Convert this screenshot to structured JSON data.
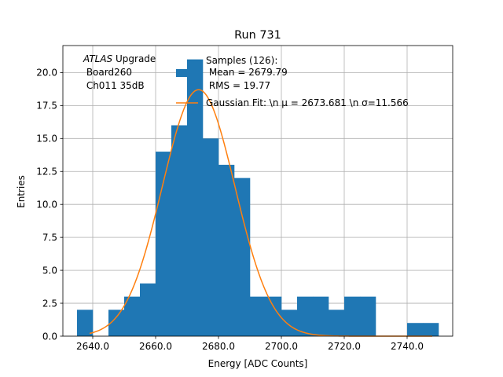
{
  "chart_data": {
    "type": "bar",
    "title": "Run 731",
    "xlabel": "Energy [ADC Counts]",
    "ylabel": "Entries",
    "xlim": [
      2630.5,
      2754.5
    ],
    "ylim": [
      0,
      22.05
    ],
    "xticks": [
      2640,
      2660,
      2680,
      2700,
      2720,
      2740
    ],
    "xtick_labels": [
      "2640.0",
      "2660.0",
      "2680.0",
      "2700.0",
      "2720.0",
      "2740.0"
    ],
    "yticks": [
      0,
      2.5,
      5,
      7.5,
      10,
      12.5,
      15,
      17.5,
      20
    ],
    "ytick_labels": [
      "0.0",
      "2.5",
      "5.0",
      "7.5",
      "10.0",
      "12.5",
      "15.0",
      "17.5",
      "20.0"
    ],
    "grid": true,
    "legend_placement": "top-right",
    "annotation": {
      "line1_italic": "ATLAS",
      "line1_rest": " Upgrade",
      "line2": " Board260",
      "line3": " Ch011 35dB"
    },
    "series": [
      {
        "name": "Samples (126):",
        "name_line2": " Mean = 2679.79",
        "name_line3": " RMS = 19.77",
        "kind": "histogram",
        "color": "#1f77b4",
        "bins": [
          {
            "x0": 2635,
            "x1": 2640,
            "count": 2
          },
          {
            "x0": 2640,
            "x1": 2645,
            "count": 0
          },
          {
            "x0": 2645,
            "x1": 2650,
            "count": 2
          },
          {
            "x0": 2650,
            "x1": 2655,
            "count": 3
          },
          {
            "x0": 2655,
            "x1": 2660,
            "count": 4
          },
          {
            "x0": 2660,
            "x1": 2665,
            "count": 14
          },
          {
            "x0": 2665,
            "x1": 2670,
            "count": 16
          },
          {
            "x0": 2670,
            "x1": 2675,
            "count": 21
          },
          {
            "x0": 2675,
            "x1": 2680,
            "count": 15
          },
          {
            "x0": 2680,
            "x1": 2685,
            "count": 13
          },
          {
            "x0": 2685,
            "x1": 2690,
            "count": 12
          },
          {
            "x0": 2690,
            "x1": 2695,
            "count": 3
          },
          {
            "x0": 2695,
            "x1": 2700,
            "count": 3
          },
          {
            "x0": 2700,
            "x1": 2705,
            "count": 2
          },
          {
            "x0": 2705,
            "x1": 2710,
            "count": 3
          },
          {
            "x0": 2710,
            "x1": 2715,
            "count": 3
          },
          {
            "x0": 2715,
            "x1": 2720,
            "count": 2
          },
          {
            "x0": 2720,
            "x1": 2725,
            "count": 3
          },
          {
            "x0": 2725,
            "x1": 2730,
            "count": 3
          },
          {
            "x0": 2730,
            "x1": 2735,
            "count": 0
          },
          {
            "x0": 2735,
            "x1": 2740,
            "count": 0
          },
          {
            "x0": 2740,
            "x1": 2745,
            "count": 1
          },
          {
            "x0": 2745,
            "x1": 2750,
            "count": 1
          }
        ]
      },
      {
        "name": "Gaussian Fit: \\n μ = 2673.681 \\n σ=11.566",
        "kind": "gaussian",
        "color": "#ff7f0e",
        "mu": 2673.681,
        "sigma": 11.566,
        "amplitude": 18.7,
        "x_range": [
          2639,
          2748
        ]
      }
    ]
  }
}
